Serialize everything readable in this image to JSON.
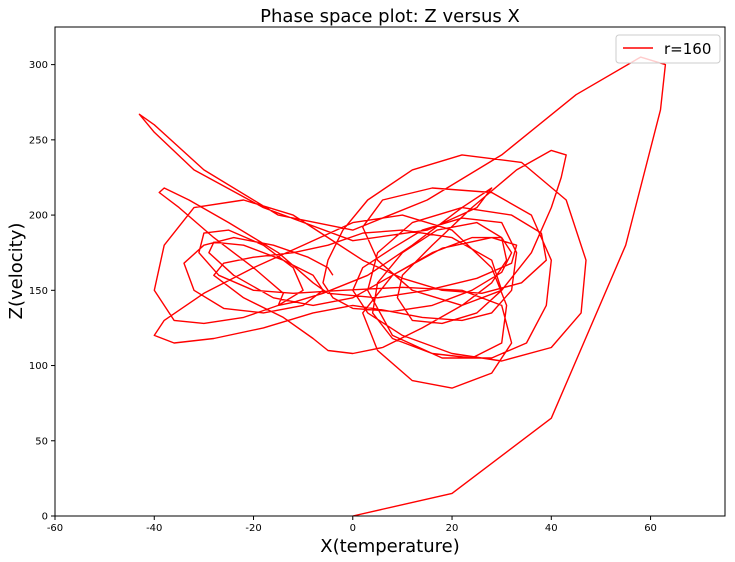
{
  "chart_data": {
    "type": "line",
    "title": "Phase space plot: Z versus X",
    "xlabel": "X(temperature)",
    "ylabel": "Z(velocity)",
    "xlim": [
      -60,
      75
    ],
    "ylim": [
      0,
      325
    ],
    "xticks": [
      -60,
      -40,
      -20,
      0,
      20,
      40,
      60
    ],
    "yticks": [
      0,
      50,
      100,
      150,
      200,
      250,
      300
    ],
    "grid": false,
    "legend_position": "top-right",
    "series": [
      {
        "name": "r=160",
        "color": "#ff0000",
        "x": [
          0,
          20,
          40,
          55,
          62,
          63,
          58,
          45,
          30,
          15,
          0,
          -15,
          -30,
          -40,
          -43,
          -40,
          -32,
          -18,
          0,
          15,
          25,
          28,
          22,
          12,
          3,
          -6,
          -12,
          -15,
          -14,
          -20,
          -28,
          -35,
          -39,
          -38,
          -33,
          -25,
          -15,
          -8,
          -5,
          5,
          15,
          25,
          32,
          33,
          28,
          18,
          8,
          2,
          5,
          12,
          20,
          28,
          32,
          30,
          22,
          10,
          -2,
          -12,
          -20,
          -27,
          -31,
          -30,
          -25,
          -18,
          -12,
          -10,
          -15,
          -22,
          -30,
          -36,
          -40,
          -38,
          -32,
          -22,
          -12,
          -5,
          2,
          10,
          18,
          26,
          34,
          39,
          38,
          32,
          22,
          12,
          5,
          3,
          8,
          18,
          28,
          35,
          39,
          40,
          36,
          28,
          16,
          6,
          2,
          5,
          12,
          22,
          30,
          36,
          40,
          42,
          43,
          40,
          33,
          24,
          16,
          10,
          9,
          12,
          18,
          25,
          30,
          28,
          20,
          10,
          2,
          -5,
          -12,
          -20,
          -26,
          -28,
          -22,
          -14,
          -8,
          -5,
          0,
          6,
          14,
          22,
          28,
          31,
          30,
          25,
          17,
          10,
          5,
          4,
          8,
          16,
          24,
          30,
          31,
          28,
          20,
          10,
          0,
          -10,
          -20,
          -30,
          -38,
          -40,
          -36,
          -28,
          -18,
          -8,
          0,
          6,
          14,
          22,
          28,
          32,
          33,
          30,
          22,
          14,
          8,
          2,
          0,
          3,
          10,
          20,
          30,
          40,
          46,
          47,
          43,
          34,
          22,
          12,
          3,
          -2,
          -5,
          -6,
          -4,
          0,
          8,
          16,
          24,
          30,
          32,
          30,
          24,
          16,
          8,
          0,
          -8,
          -16,
          -24,
          -29,
          -28,
          -22,
          -14,
          -8,
          -6,
          -10,
          -18,
          -26,
          -32,
          -34,
          -30,
          -24,
          -16,
          -9,
          -5,
          -4
        ],
        "y": [
          0,
          15,
          65,
          180,
          270,
          300,
          305,
          280,
          240,
          210,
          190,
          200,
          230,
          260,
          267,
          255,
          230,
          205,
          183,
          190,
          205,
          218,
          205,
          180,
          160,
          148,
          142,
          140,
          148,
          165,
          185,
          205,
          215,
          218,
          210,
          195,
          175,
          155,
          148,
          145,
          150,
          158,
          168,
          180,
          185,
          178,
          160,
          135,
          110,
          90,
          85,
          95,
          115,
          140,
          150,
          152,
          150,
          148,
          150,
          160,
          175,
          188,
          190,
          180,
          165,
          150,
          140,
          132,
          128,
          130,
          150,
          180,
          205,
          210,
          200,
          185,
          170,
          158,
          150,
          148,
          155,
          170,
          188,
          200,
          205,
          195,
          175,
          150,
          120,
          105,
          105,
          115,
          140,
          170,
          200,
          215,
          218,
          210,
          192,
          170,
          150,
          140,
          150,
          175,
          205,
          225,
          240,
          243,
          230,
          205,
          180,
          160,
          145,
          130,
          128,
          135,
          150,
          170,
          185,
          190,
          188,
          180,
          175,
          172,
          168,
          160,
          145,
          132,
          118,
          110,
          108,
          112,
          125,
          140,
          155,
          170,
          185,
          195,
          190,
          175,
          155,
          135,
          118,
          108,
          105,
          115,
          140,
          165,
          190,
          200,
          195,
          180,
          165,
          148,
          130,
          120,
          115,
          118,
          125,
          135,
          140,
          137,
          132,
          130,
          135,
          150,
          175,
          195,
          198,
          190,
          178,
          165,
          150,
          135,
          120,
          108,
          103,
          112,
          135,
          170,
          210,
          235,
          240,
          230,
          210,
          190,
          170,
          155,
          145,
          138,
          136,
          140,
          150,
          162,
          175,
          185,
          185,
          175,
          160,
          145,
          140,
          145,
          160,
          175,
          182,
          180,
          170,
          160,
          150,
          140,
          135,
          138,
          150,
          168,
          180,
          185,
          180,
          172,
          165,
          160
        ]
      }
    ]
  }
}
